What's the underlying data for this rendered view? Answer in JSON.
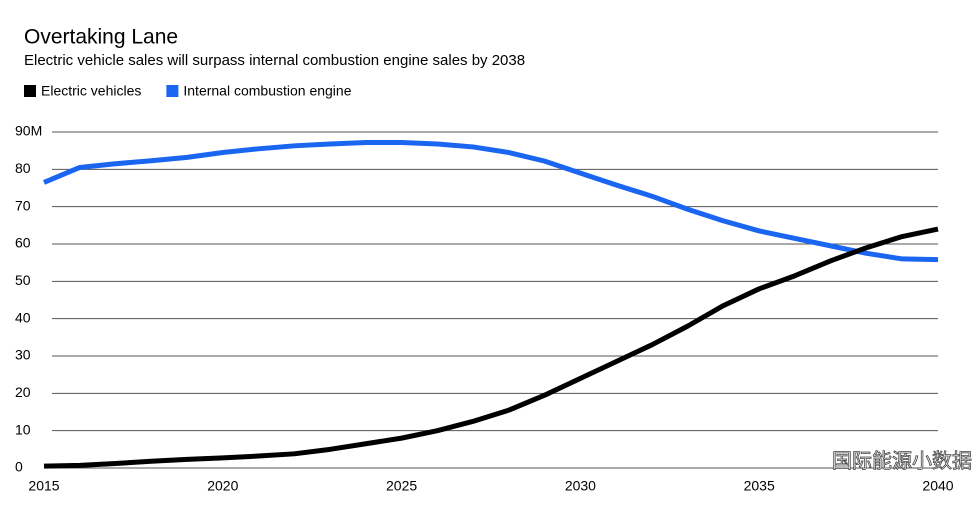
{
  "chart_data": {
    "type": "line",
    "title": "Overtaking Lane",
    "subtitle": "Electric vehicle sales will surpass internal combustion engine sales by 2038",
    "x": [
      2015,
      2016,
      2017,
      2018,
      2019,
      2020,
      2021,
      2022,
      2023,
      2024,
      2025,
      2026,
      2027,
      2028,
      2029,
      2030,
      2031,
      2032,
      2033,
      2034,
      2035,
      2036,
      2037,
      2038,
      2039,
      2040
    ],
    "series": [
      {
        "name": "Electric vehicles",
        "color": "#000000",
        "values": [
          0.5,
          0.7,
          1.2,
          1.8,
          2.3,
          2.7,
          3.2,
          3.8,
          5,
          6.5,
          8,
          10,
          12.5,
          15.5,
          19.5,
          24,
          28.5,
          33,
          38,
          43.5,
          48,
          51.5,
          55.5,
          59,
          62,
          64
        ]
      },
      {
        "name": "Internal combustion engine",
        "color": "#1a66f0",
        "values": [
          76.5,
          80.5,
          81.5,
          82.3,
          83.2,
          84.5,
          85.5,
          86.3,
          86.8,
          87.2,
          87.2,
          86.8,
          86,
          84.5,
          82.2,
          79,
          75.8,
          72.8,
          69.3,
          66.2,
          63.5,
          61.5,
          59.5,
          57.5,
          56,
          55.8
        ]
      }
    ],
    "xlim": [
      2015,
      2040
    ],
    "xticks": [
      2015,
      2020,
      2025,
      2030,
      2035,
      2040
    ],
    "ylim": [
      0,
      90
    ],
    "yticks": [
      0,
      10,
      20,
      30,
      40,
      50,
      60,
      70,
      80,
      {
        "value": 90,
        "label": "90M"
      }
    ],
    "grid": true,
    "watermark": "国际能源小数据"
  }
}
